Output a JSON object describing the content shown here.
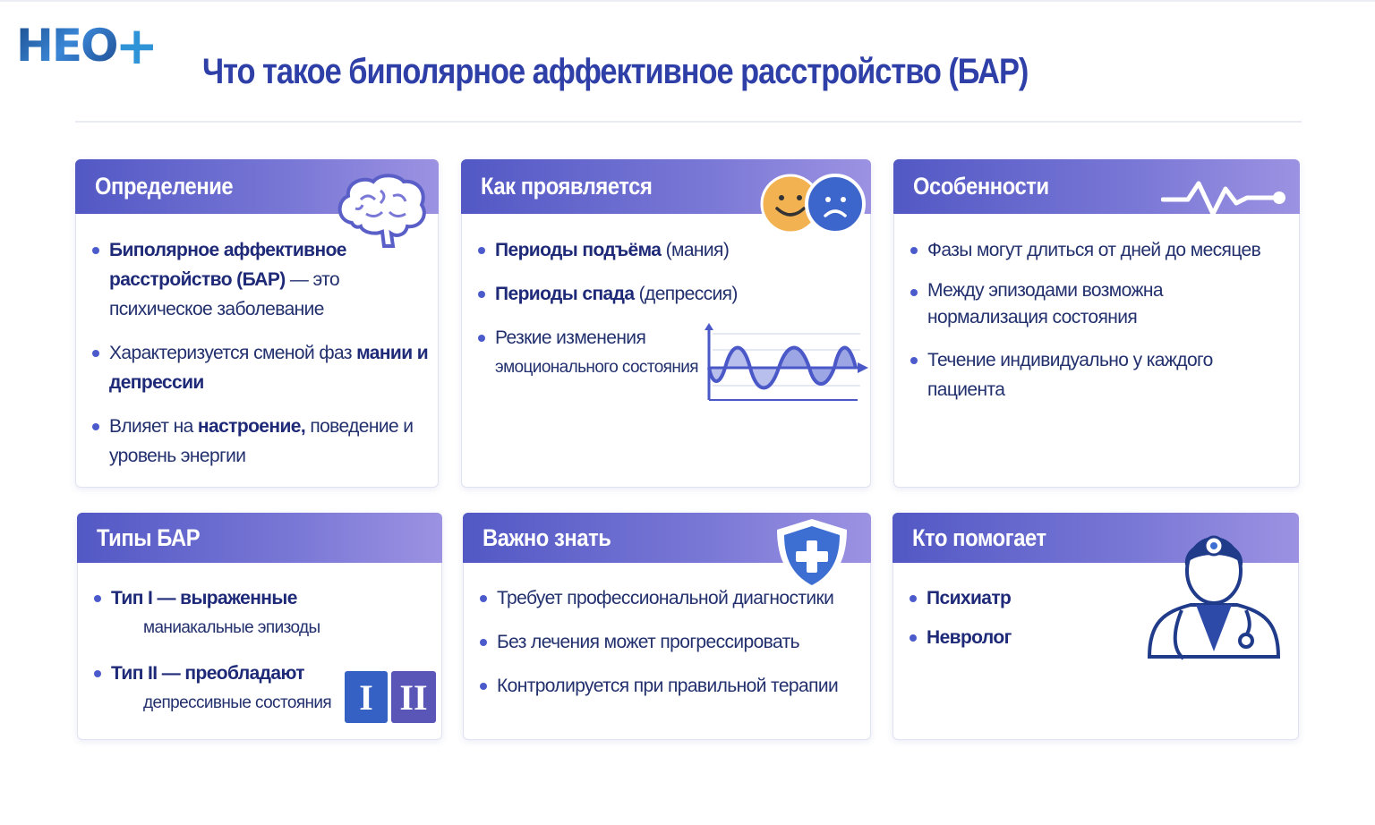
{
  "logo": {
    "text": "НЕО",
    "plus": "+"
  },
  "title": "Что такое биполярное аффективное расстройство (БАР)",
  "colors": {
    "accent": "#2f3fa8",
    "header_start": "#5258c4",
    "header_end": "#9c92e2",
    "text": "#22306e"
  },
  "cards": [
    {
      "title": "Определение",
      "icon": "brain-icon",
      "items": [
        {
          "parts": [
            "Биполярное аффективное расстройство (БАР)",
            " — это психическое заболевание"
          ]
        },
        {
          "parts": [
            "Характеризуется сменой фаз ",
            "мании",
            " и ",
            "депрессии"
          ]
        },
        {
          "parts": [
            "Влияет на ",
            "настроение,",
            " поведение и уровень энергии"
          ]
        }
      ]
    },
    {
      "title": "Как проявляется",
      "icon": "happy-sad-faces-icon",
      "items": [
        {
          "parts": [
            "Периоды подъёма",
            " (мания)"
          ]
        },
        {
          "parts": [
            "Периоды спада",
            " (депрессия)"
          ]
        },
        {
          "parts": [
            "Резкие изменения",
            "эмоционального состояния"
          ]
        }
      ],
      "graphic": "mood-wave-chart"
    },
    {
      "title": "Особенности",
      "icon": "heartbeat-icon",
      "items": [
        {
          "parts": [
            "Фазы могут длиться от дней до месяцев"
          ]
        },
        {
          "parts": [
            "Между эпизодами возможна нормализация состояния"
          ]
        },
        {
          "parts": [
            "Течение индивидуально у каждого пациента"
          ]
        }
      ]
    },
    {
      "title": "Типы БАР",
      "icon": "roman-numerals-icon",
      "numerals": [
        "I",
        "II"
      ],
      "items": [
        {
          "parts": [
            "Тип I — выраженные",
            "маниакальные эпизоды"
          ]
        },
        {
          "parts": [
            "Тип II — преобладают",
            "депрессивные состояния"
          ]
        }
      ]
    },
    {
      "title": "Важно знать",
      "icon": "shield-plus-icon",
      "items": [
        {
          "parts": [
            "Требует профессиональной диагностики"
          ]
        },
        {
          "parts": [
            "Без лечения может прогрессировать"
          ]
        },
        {
          "parts": [
            "Контролируется при правильной терапии"
          ]
        }
      ]
    },
    {
      "title": "Кто помогает",
      "icon": "doctor-icon",
      "items": [
        {
          "parts": [
            "Психиатр"
          ]
        },
        {
          "parts": [
            "Невролог"
          ]
        }
      ]
    }
  ]
}
